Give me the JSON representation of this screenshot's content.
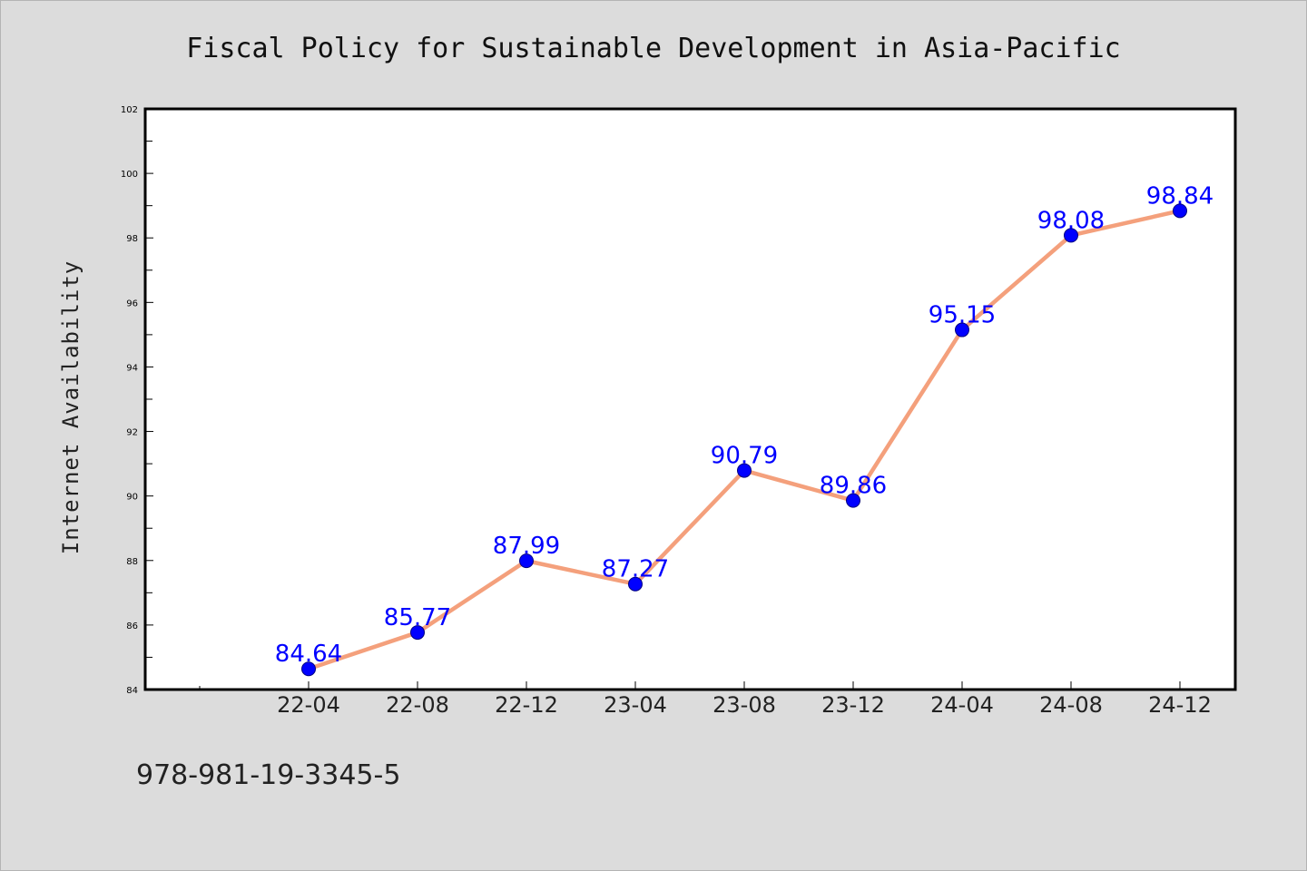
{
  "chart_data": {
    "type": "line",
    "title": "Fiscal Policy for Sustainable Development in Asia-Pacific",
    "xlabel": "",
    "ylabel": "Internet Availability",
    "categories": [
      "22-04",
      "22-08",
      "22-12",
      "23-04",
      "23-08",
      "23-12",
      "24-04",
      "24-08",
      "24-12"
    ],
    "values": [
      84.64,
      85.77,
      87.99,
      87.27,
      90.79,
      89.86,
      95.15,
      98.08,
      98.84
    ],
    "data_labels": [
      "84.64",
      "85.77",
      "87.99",
      "87.27",
      "90.79",
      "89.86",
      "95.15",
      "98.08",
      "98.84"
    ],
    "ylim": [
      84,
      102
    ],
    "y_ticks": [
      84,
      86,
      88,
      90,
      92,
      94,
      96,
      98,
      100,
      102
    ],
    "grid": false,
    "legend": "none",
    "colors": {
      "line": "#f4a07c",
      "marker": "#0000ff",
      "marker_edge": "#000080",
      "data_label": "#0000ff",
      "plot_bg": "#ffffff",
      "page_bg": "#dcdcdc"
    }
  },
  "footer": {
    "isbn": "978-981-19-3345-5"
  }
}
